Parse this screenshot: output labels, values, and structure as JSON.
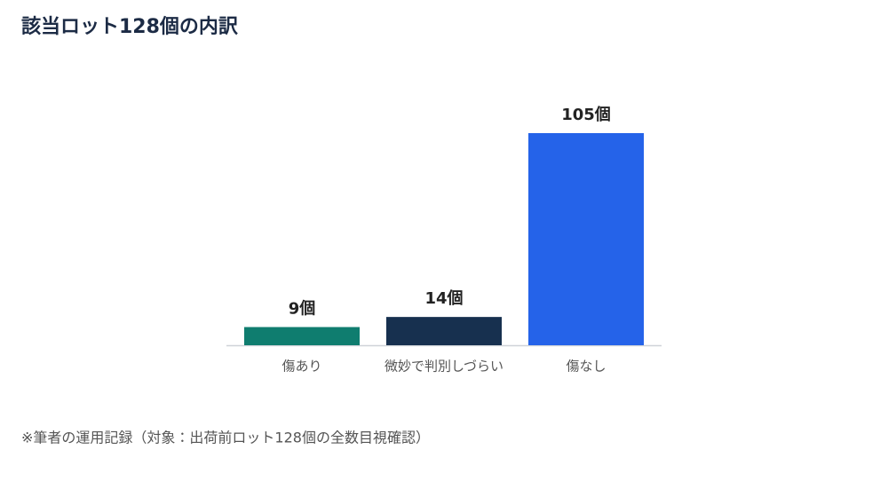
{
  "chart_data": {
    "type": "bar",
    "title": "該当ロット128個の内訳",
    "categories": [
      "傷あり",
      "微妙で判別しづらい",
      "傷なし"
    ],
    "values": [
      9,
      14,
      105
    ],
    "value_labels": [
      "9個",
      "14個",
      "105個"
    ],
    "colors": [
      "#0f7d6f",
      "#17304f",
      "#2563e9"
    ],
    "note": "※筆者の運用記録（対象：出荷前ロット128個の全数目視確認）"
  }
}
